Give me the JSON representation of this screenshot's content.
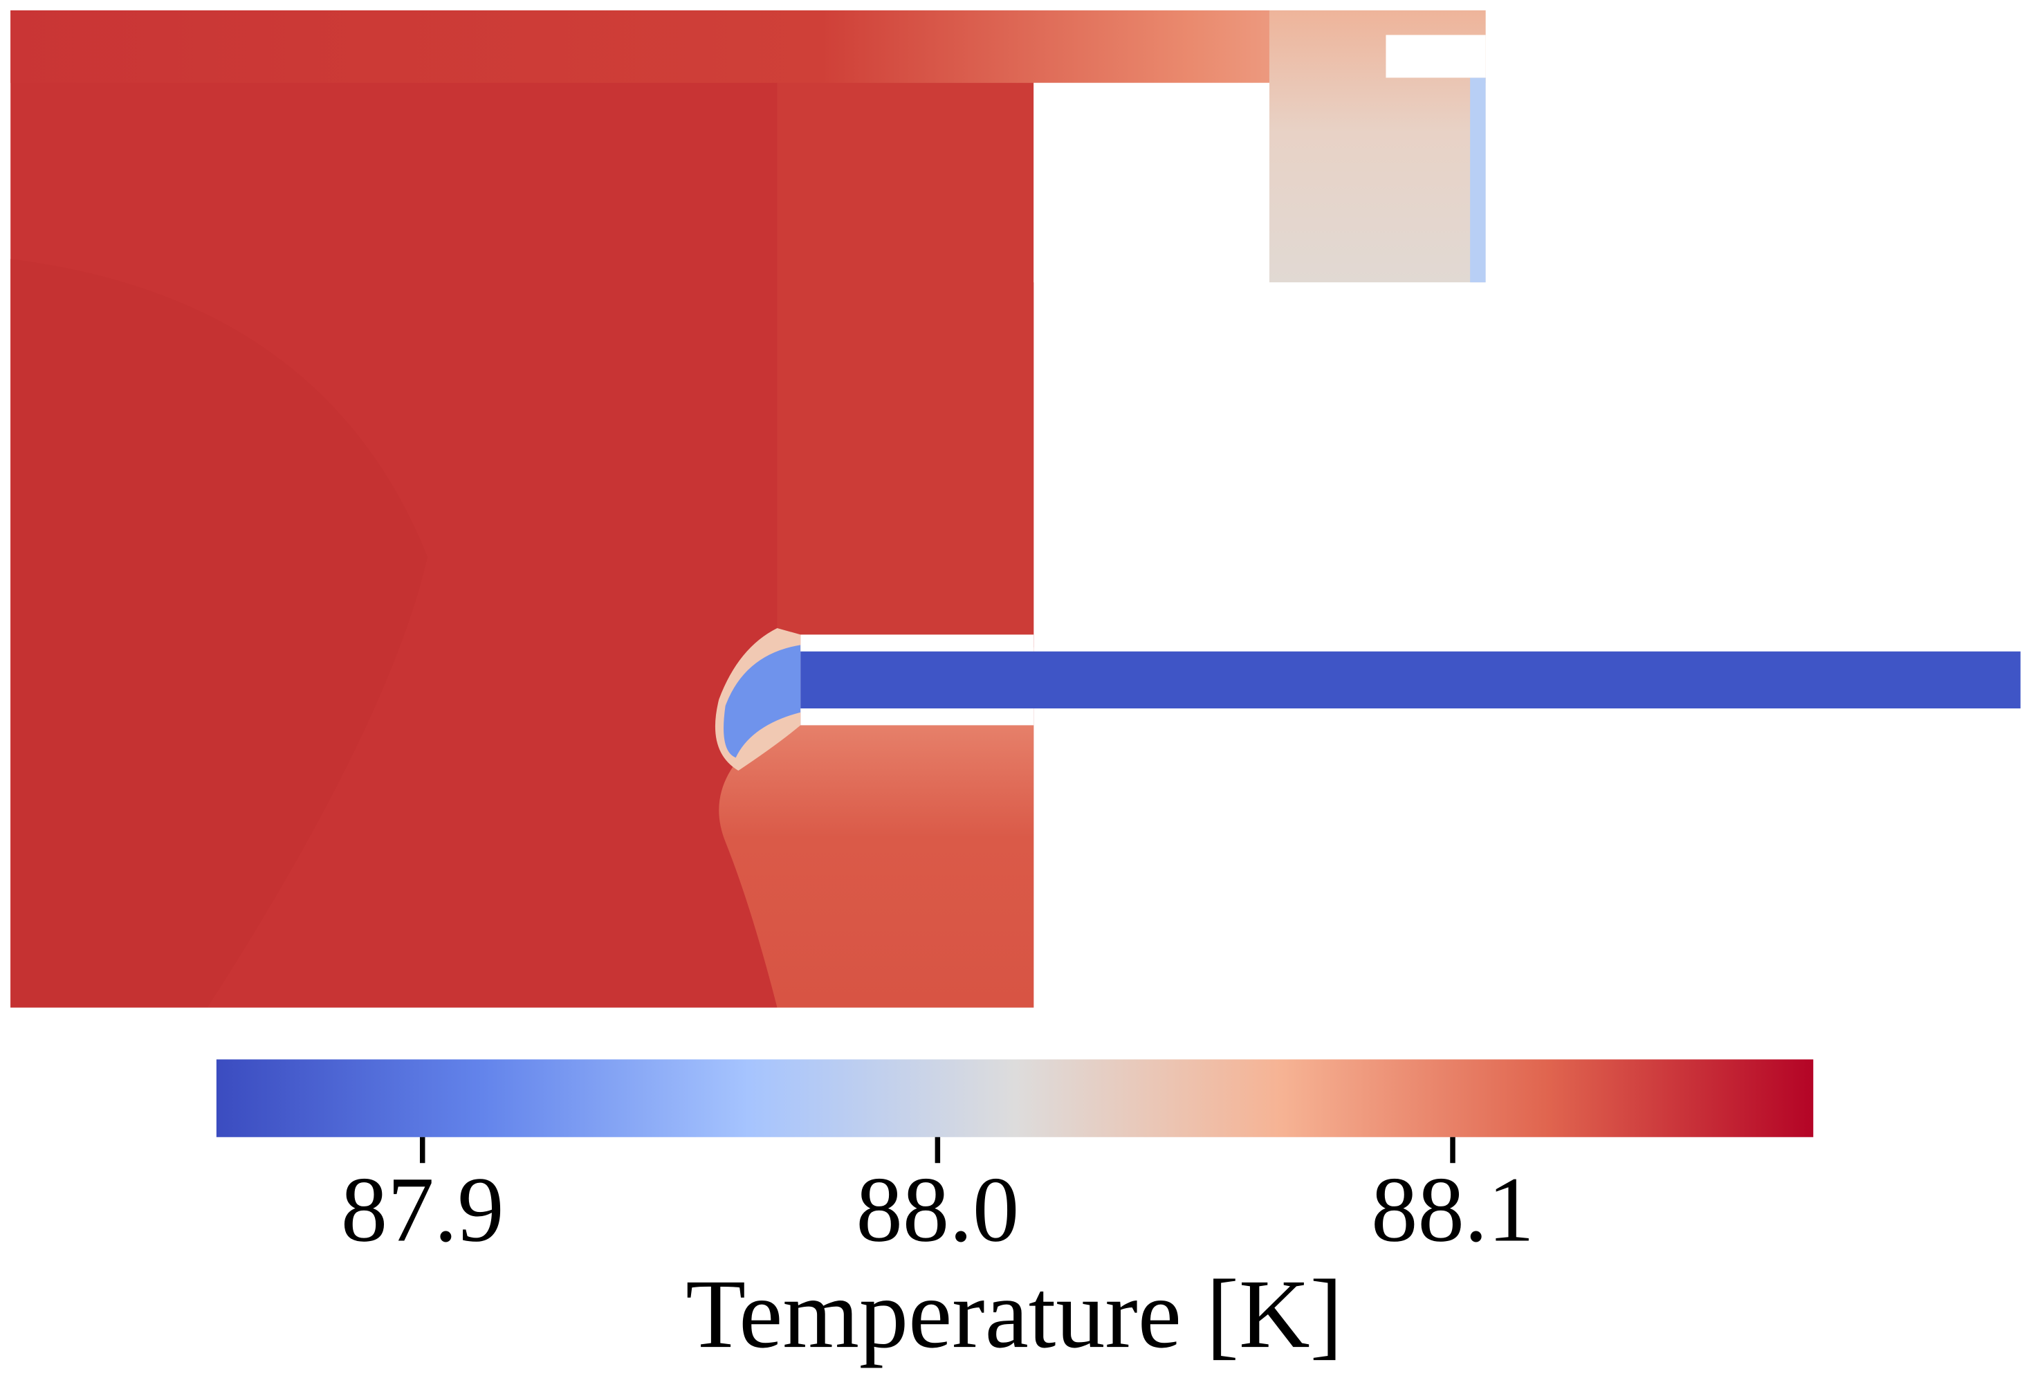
{
  "chart_data": {
    "type": "field",
    "colorbar_label": "Temperature [K]",
    "clim": [
      87.86,
      88.17
    ],
    "colorbar_ticks": [
      87.9,
      {
        "value": 88,
        "label": "88.0"
      },
      88.1
    ],
    "colormap": [
      "#3b4cc0",
      "#6384eb",
      "#a6c4fe",
      "#dddcdc",
      "#f6b394",
      "#e0654f",
      "#b40426"
    ]
  }
}
